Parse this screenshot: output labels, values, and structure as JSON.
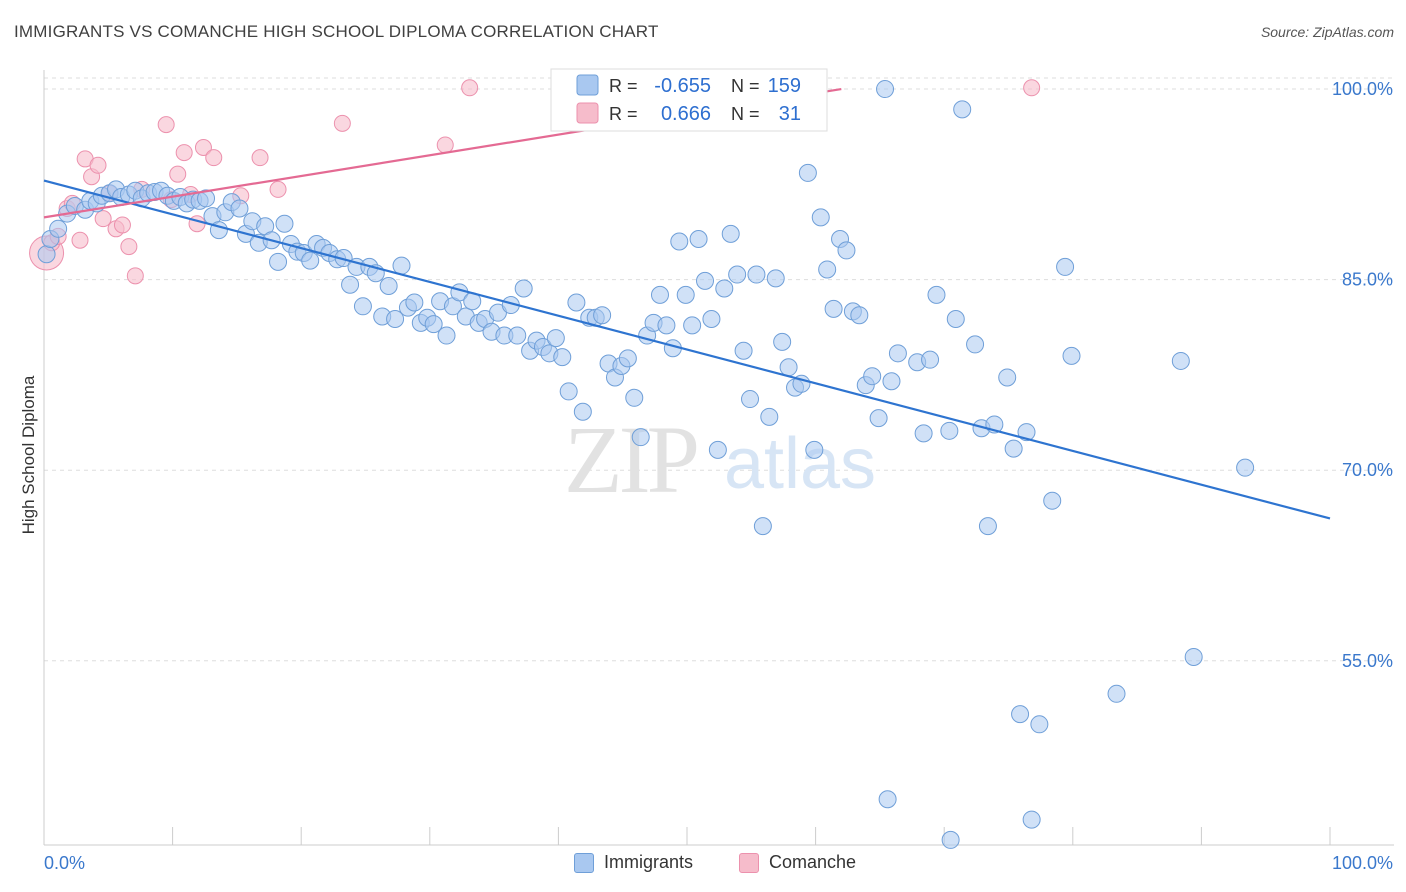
{
  "title": "IMMIGRANTS VS COMANCHE HIGH SCHOOL DIPLOMA CORRELATION CHART",
  "source": "Source: ZipAtlas.com",
  "watermark": {
    "zip": "ZIP",
    "atlas": "atlas"
  },
  "colors": {
    "immigrants_fill": "#a9c8f0",
    "immigrants_stroke": "#6f9fd8",
    "immigrants_line": "#2e74d0",
    "comanche_fill": "#f6bccb",
    "comanche_stroke": "#ec91ad",
    "comanche_line": "#e46a93",
    "axis_label": "#3a78cc",
    "grid": "#dddddd"
  },
  "legend_top": {
    "rows": [
      {
        "r_label": "R =",
        "r_value": "-0.655",
        "n_label": "N =",
        "n_value": "159"
      },
      {
        "r_label": "R =",
        "r_value": "0.666",
        "n_label": "N =",
        "n_value": "31"
      }
    ]
  },
  "chart_data": {
    "type": "scatter",
    "title": "IMMIGRANTS VS COMANCHE HIGH SCHOOL DIPLOMA CORRELATION CHART",
    "xlabel": "",
    "ylabel": "High School Diploma",
    "xlim": [
      0,
      100
    ],
    "ylim": [
      40.5,
      101.5
    ],
    "x_tick_labels": [
      "0.0%",
      "100.0%"
    ],
    "y_ticks": [
      55,
      70,
      85,
      100
    ],
    "y_tick_labels": [
      "55.0%",
      "70.0%",
      "85.0%",
      "100.0%"
    ],
    "grid": "horizontal dashed",
    "legend": [
      "Immigrants",
      "Comanche"
    ],
    "series": [
      {
        "name": "Immigrants",
        "r": -0.655,
        "n": 159,
        "trend": [
          [
            0,
            92.8
          ],
          [
            100,
            66.2
          ]
        ],
        "points": [
          [
            0.2,
            87.0
          ],
          [
            0.5,
            88.2
          ],
          [
            1.1,
            89.0
          ],
          [
            1.8,
            90.2
          ],
          [
            2.4,
            90.8
          ],
          [
            3.2,
            90.5
          ],
          [
            3.6,
            91.2
          ],
          [
            4.1,
            91.0
          ],
          [
            4.5,
            91.6
          ],
          [
            5.1,
            91.8
          ],
          [
            5.6,
            92.1
          ],
          [
            6.0,
            91.5
          ],
          [
            6.6,
            91.7
          ],
          [
            7.1,
            92.0
          ],
          [
            7.6,
            91.4
          ],
          [
            8.1,
            91.8
          ],
          [
            8.6,
            91.9
          ],
          [
            9.1,
            92.0
          ],
          [
            9.6,
            91.6
          ],
          [
            10.1,
            91.2
          ],
          [
            10.6,
            91.5
          ],
          [
            11.1,
            91.0
          ],
          [
            11.6,
            91.3
          ],
          [
            12.1,
            91.2
          ],
          [
            12.6,
            91.4
          ],
          [
            13.1,
            90.0
          ],
          [
            13.6,
            88.9
          ],
          [
            14.1,
            90.3
          ],
          [
            14.6,
            91.1
          ],
          [
            15.2,
            90.6
          ],
          [
            15.7,
            88.6
          ],
          [
            16.2,
            89.6
          ],
          [
            16.7,
            87.9
          ],
          [
            17.2,
            89.2
          ],
          [
            17.7,
            88.1
          ],
          [
            18.2,
            86.4
          ],
          [
            18.7,
            89.4
          ],
          [
            19.2,
            87.8
          ],
          [
            19.7,
            87.2
          ],
          [
            20.2,
            87.1
          ],
          [
            20.7,
            86.5
          ],
          [
            21.2,
            87.8
          ],
          [
            21.7,
            87.5
          ],
          [
            22.2,
            87.1
          ],
          [
            22.8,
            86.6
          ],
          [
            23.3,
            86.7
          ],
          [
            23.8,
            84.6
          ],
          [
            24.3,
            86.0
          ],
          [
            24.8,
            82.9
          ],
          [
            25.3,
            86.0
          ],
          [
            25.8,
            85.5
          ],
          [
            26.3,
            82.1
          ],
          [
            26.8,
            84.5
          ],
          [
            27.3,
            81.9
          ],
          [
            27.8,
            86.1
          ],
          [
            28.3,
            82.8
          ],
          [
            28.8,
            83.2
          ],
          [
            29.3,
            81.6
          ],
          [
            29.8,
            82.0
          ],
          [
            30.3,
            81.5
          ],
          [
            30.8,
            83.3
          ],
          [
            31.3,
            80.6
          ],
          [
            31.8,
            82.9
          ],
          [
            32.3,
            84.0
          ],
          [
            32.8,
            82.1
          ],
          [
            33.3,
            83.3
          ],
          [
            33.8,
            81.6
          ],
          [
            34.3,
            81.9
          ],
          [
            34.8,
            80.9
          ],
          [
            35.3,
            82.4
          ],
          [
            35.8,
            80.6
          ],
          [
            36.3,
            83.0
          ],
          [
            36.8,
            80.6
          ],
          [
            37.3,
            84.3
          ],
          [
            37.8,
            79.4
          ],
          [
            38.3,
            80.2
          ],
          [
            38.8,
            79.7
          ],
          [
            39.3,
            79.2
          ],
          [
            39.8,
            80.4
          ],
          [
            40.3,
            78.9
          ],
          [
            40.8,
            76.2
          ],
          [
            41.4,
            83.2
          ],
          [
            41.9,
            74.6
          ],
          [
            42.4,
            82.0
          ],
          [
            42.9,
            82.0
          ],
          [
            43.4,
            82.2
          ],
          [
            43.9,
            78.4
          ],
          [
            44.4,
            77.3
          ],
          [
            44.9,
            78.2
          ],
          [
            45.4,
            78.8
          ],
          [
            45.9,
            75.7
          ],
          [
            46.4,
            72.6
          ],
          [
            46.9,
            80.6
          ],
          [
            47.4,
            81.6
          ],
          [
            47.9,
            83.8
          ],
          [
            48.4,
            81.4
          ],
          [
            48.9,
            79.6
          ],
          [
            49.4,
            88.0
          ],
          [
            49.9,
            83.8
          ],
          [
            50.4,
            81.4
          ],
          [
            50.9,
            88.2
          ],
          [
            51.4,
            84.9
          ],
          [
            51.9,
            81.9
          ],
          [
            52.4,
            71.6
          ],
          [
            52.9,
            84.3
          ],
          [
            53.4,
            88.6
          ],
          [
            53.9,
            85.4
          ],
          [
            54.4,
            79.4
          ],
          [
            54.9,
            75.6
          ],
          [
            55.4,
            85.4
          ],
          [
            55.9,
            65.6
          ],
          [
            56.4,
            74.2
          ],
          [
            56.9,
            85.1
          ],
          [
            57.4,
            80.1
          ],
          [
            57.9,
            78.1
          ],
          [
            58.4,
            76.5
          ],
          [
            58.9,
            76.8
          ],
          [
            59.4,
            93.4
          ],
          [
            59.9,
            71.6
          ],
          [
            60.4,
            89.9
          ],
          [
            60.9,
            85.8
          ],
          [
            61.4,
            82.7
          ],
          [
            61.9,
            88.2
          ],
          [
            62.4,
            87.3
          ],
          [
            62.9,
            82.5
          ],
          [
            63.4,
            82.2
          ],
          [
            63.9,
            76.7
          ],
          [
            64.4,
            77.4
          ],
          [
            64.9,
            74.1
          ],
          [
            65.4,
            100.0
          ],
          [
            65.9,
            77.0
          ],
          [
            66.4,
            79.2
          ],
          [
            67.9,
            78.5
          ],
          [
            68.4,
            72.9
          ],
          [
            68.9,
            78.7
          ],
          [
            69.4,
            83.8
          ],
          [
            70.4,
            73.1
          ],
          [
            70.9,
            81.9
          ],
          [
            71.4,
            98.4
          ],
          [
            72.4,
            79.9
          ],
          [
            72.9,
            73.3
          ],
          [
            73.4,
            65.6
          ],
          [
            73.9,
            73.6
          ],
          [
            74.9,
            77.3
          ],
          [
            75.4,
            71.7
          ],
          [
            75.9,
            50.8
          ],
          [
            76.4,
            73.0
          ],
          [
            77.4,
            50.0
          ],
          [
            78.4,
            67.6
          ],
          [
            79.4,
            86.0
          ],
          [
            79.9,
            79.0
          ],
          [
            83.4,
            52.4
          ],
          [
            88.4,
            78.6
          ],
          [
            89.4,
            55.3
          ],
          [
            93.4,
            70.2
          ],
          [
            65.6,
            44.1
          ],
          [
            70.5,
            40.9
          ],
          [
            76.8,
            42.5
          ]
        ]
      },
      {
        "name": "Comanche",
        "r": 0.666,
        "n": 31,
        "trend": [
          [
            0,
            89.9
          ],
          [
            62,
            100.0
          ]
        ],
        "points": [
          [
            0.2,
            87.1
          ],
          [
            0.6,
            87.9
          ],
          [
            1.1,
            88.4
          ],
          [
            1.8,
            90.6
          ],
          [
            2.2,
            91.0
          ],
          [
            2.8,
            88.1
          ],
          [
            3.2,
            94.5
          ],
          [
            3.7,
            93.1
          ],
          [
            4.2,
            94.0
          ],
          [
            4.6,
            89.8
          ],
          [
            5.1,
            91.8
          ],
          [
            5.6,
            89.0
          ],
          [
            6.1,
            89.3
          ],
          [
            6.6,
            87.6
          ],
          [
            7.1,
            85.3
          ],
          [
            7.6,
            92.1
          ],
          [
            9.5,
            97.2
          ],
          [
            9.9,
            91.3
          ],
          [
            10.4,
            93.3
          ],
          [
            10.9,
            95.0
          ],
          [
            11.4,
            91.7
          ],
          [
            11.9,
            89.4
          ],
          [
            12.4,
            95.4
          ],
          [
            13.2,
            94.6
          ],
          [
            15.3,
            91.6
          ],
          [
            16.8,
            94.6
          ],
          [
            18.2,
            92.1
          ],
          [
            23.2,
            97.3
          ],
          [
            31.2,
            95.6
          ],
          [
            33.1,
            100.1
          ],
          [
            76.8,
            100.1
          ]
        ]
      }
    ]
  },
  "legend_bottom": [
    {
      "label": "Immigrants"
    },
    {
      "label": "Comanche"
    }
  ]
}
